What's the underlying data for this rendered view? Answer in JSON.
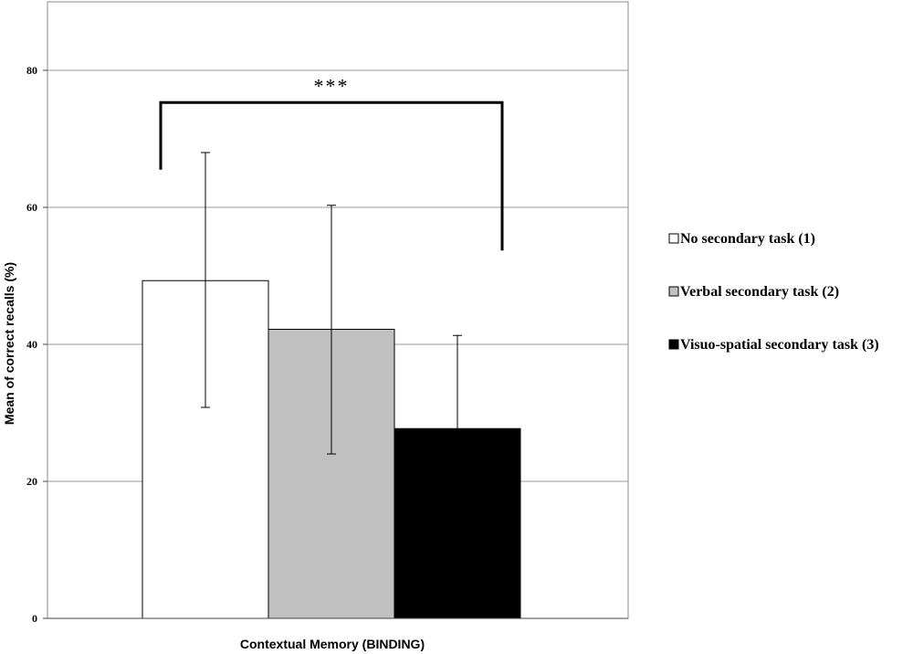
{
  "chart_data": {
    "type": "bar",
    "categories": [
      "Contextual Memory (BINDING)"
    ],
    "series": [
      {
        "name": "No secondary task (1)",
        "values": [
          49.3
        ],
        "error_low": [
          30.8
        ],
        "error_high": [
          68.0
        ],
        "color": "#ffffff"
      },
      {
        "name": "Verbal secondary task (2)",
        "values": [
          42.2
        ],
        "error_low": [
          24.0
        ],
        "error_high": [
          60.3
        ],
        "color": "#c0c0c0"
      },
      {
        "name": "Visuo-spatial secondary task (3)",
        "values": [
          27.7
        ],
        "error_low": [
          14.0
        ],
        "error_high": [
          41.3
        ],
        "color": "#000000"
      }
    ],
    "xlabel": "Contextual Memory (BINDING)",
    "ylabel": "Mean of correct recalls (%)",
    "ylim": [
      0,
      80
    ],
    "yticks": [
      "0",
      "20",
      "40",
      "60",
      "80"
    ],
    "grid": true,
    "legend_position": "right",
    "annotations": [
      {
        "text": "***",
        "between": [
          "No secondary task (1)",
          "Visuo-spatial secondary task (3)"
        ],
        "bracket_left_bottom": 65.5,
        "bracket_right_bottom": 53.7,
        "bracket_top": 75.3
      }
    ]
  }
}
